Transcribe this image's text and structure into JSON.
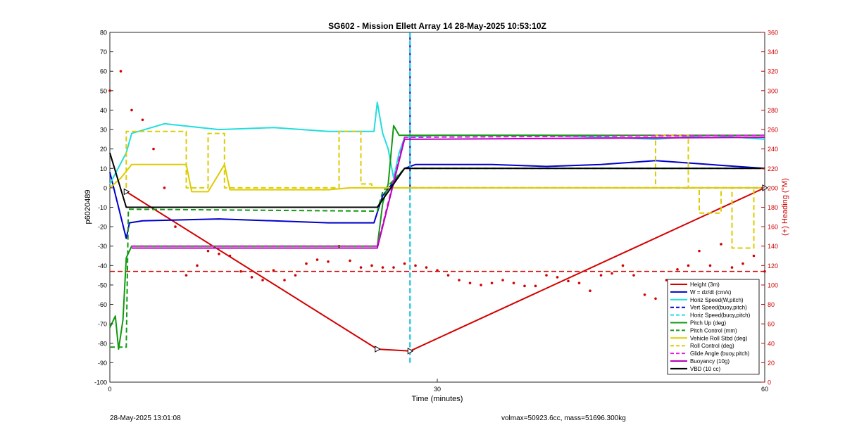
{
  "footer": {
    "timestamp": "28-May-2025 13:01:08",
    "mass_info": "volmax=50923.6cc, mass=51696.300kg"
  },
  "chart_data": {
    "type": "line",
    "title": "SG602 - Mission Ellett Array 14 28-May-2025 10:53:10Z",
    "xlabel": "Time (minutes)",
    "ylabel_left": "p6020489",
    "ylabel_right": "(+) Heading (°M)",
    "xlim": [
      0,
      60
    ],
    "ylim_left": [
      -100,
      80
    ],
    "ylim_right": [
      0,
      360
    ],
    "xticks": [
      0,
      30,
      60
    ],
    "yticks_left": [
      80,
      70,
      60,
      50,
      40,
      30,
      20,
      10,
      0,
      -10,
      -20,
      -30,
      -40,
      -50,
      -60,
      -70,
      -80,
      -90,
      -100
    ],
    "yticks_right": [
      360,
      340,
      320,
      300,
      280,
      260,
      240,
      220,
      200,
      180,
      160,
      140,
      120,
      100,
      80,
      60,
      40,
      20,
      0
    ],
    "grid": false,
    "legend_position": "bottom-right",
    "colors": {
      "left_axis": "#000000",
      "right_axis": "#cc0000"
    },
    "series": [
      {
        "name": "Height (3m)",
        "color": "#d40000",
        "style": "solid",
        "x": [
          1.5,
          24.5,
          27.5,
          60
        ],
        "y": [
          -2,
          -83,
          -84,
          0
        ]
      },
      {
        "name": "W = dz/dt (cm/s)",
        "color": "#0000cc",
        "style": "solid",
        "x": [
          0,
          1.5,
          1.8,
          3,
          10,
          15,
          20,
          24.2,
          25,
          26,
          27,
          28,
          35,
          40,
          45,
          50,
          55,
          60
        ],
        "y": [
          8,
          -26,
          -18,
          -17,
          -16,
          -17,
          -18,
          -18,
          -4,
          3,
          10,
          12,
          12,
          11,
          12,
          14,
          12,
          10
        ]
      },
      {
        "name": "Horiz Speed(W,pitch)",
        "color": "#22dddd",
        "style": "solid",
        "x": [
          0,
          1.5,
          2,
          5,
          10,
          15,
          20,
          24.2,
          24.5,
          25,
          25.5,
          26,
          26.5,
          27,
          30,
          40,
          50,
          55,
          60
        ],
        "y": [
          2,
          18,
          28,
          33,
          30,
          31,
          29,
          29,
          44,
          28,
          20,
          5,
          18,
          26,
          27,
          27,
          25,
          27,
          25
        ]
      },
      {
        "name": "Vert Speed(buoy,pitch)",
        "color": "#0000cc",
        "style": "dashed",
        "x": [
          27.5,
          27.5,
          27.5,
          60
        ],
        "y": [
          -90,
          80,
          0,
          0
        ]
      },
      {
        "name": "Horiz Speed(buoy,pitch)",
        "color": "#22dddd",
        "style": "dashed",
        "x": [
          27.5,
          27.5
        ],
        "y": [
          -90,
          80
        ]
      },
      {
        "name": "Pitch Up (deg)",
        "color": "#119911",
        "style": "solid",
        "x": [
          0,
          0.5,
          0.8,
          1.2,
          1.5,
          2,
          3,
          10,
          20,
          24.5,
          25,
          25.5,
          26,
          26.5,
          60
        ],
        "y": [
          -72,
          -66,
          -83,
          -68,
          -36,
          -30,
          -30,
          -30,
          -30,
          -30,
          -8,
          2,
          32,
          27,
          27
        ]
      },
      {
        "name": "Pitch Control (mm)",
        "color": "#119911",
        "style": "dashed",
        "x": [
          0,
          1.5,
          1.7,
          24.5,
          25,
          27,
          60
        ],
        "y": [
          -82,
          -82,
          -11,
          -12,
          -2,
          10,
          10
        ]
      },
      {
        "name": "Vehicle Roll Stbd (deg)",
        "color": "#ddcc00",
        "style": "solid",
        "x": [
          0,
          1,
          2,
          7,
          7.5,
          9,
          10.5,
          11,
          20,
          22,
          23,
          24,
          26,
          30,
          40,
          50,
          55,
          60
        ],
        "y": [
          0,
          5,
          12,
          12,
          -2,
          -2,
          12,
          -1,
          -1,
          0,
          0,
          0,
          0,
          0,
          0,
          0,
          0,
          0
        ]
      },
      {
        "name": "Roll Control (deg)",
        "color": "#ddcc00",
        "style": "dashed",
        "x": [
          1.5,
          1.5,
          7,
          7,
          9,
          9,
          10.5,
          10.5,
          21,
          21,
          23,
          23,
          24,
          24,
          50,
          50,
          53,
          53,
          54,
          54,
          56,
          56,
          57,
          57,
          59,
          59
        ],
        "y": [
          0,
          29,
          29,
          0,
          0,
          28,
          28,
          0,
          0,
          29,
          29,
          2,
          2,
          0,
          0,
          27,
          27,
          0,
          0,
          -13,
          -13,
          0,
          0,
          -31,
          -31,
          0
        ]
      },
      {
        "name": "Glide Angle (buoy,pitch)",
        "color": "#dd22dd",
        "style": "dashed",
        "x": [
          2,
          24.5,
          27,
          60
        ],
        "y": [
          -30,
          -30,
          26,
          27
        ]
      },
      {
        "name": "Buoyancy (10g)",
        "color": "#bb00bb",
        "style": "solid",
        "x": [
          2,
          24.5,
          27,
          60
        ],
        "y": [
          -31,
          -31,
          25,
          26
        ]
      },
      {
        "name": "VBD (10 cc)",
        "color": "#000000",
        "style": "solid",
        "x": [
          0,
          1.5,
          24.5,
          27,
          60
        ],
        "y": [
          18,
          -10,
          -10,
          10,
          10
        ]
      }
    ],
    "heading_series": {
      "color": "#d40000",
      "style": "dotted",
      "mean_heading": 114,
      "x": [
        0,
        1,
        2,
        3,
        4,
        5,
        6,
        7,
        8,
        9,
        10,
        11,
        12,
        13,
        14,
        15,
        16,
        17,
        18,
        19,
        20,
        21,
        22,
        23,
        24,
        25,
        26,
        27,
        28,
        29,
        30,
        31,
        32,
        33,
        34,
        35,
        36,
        37,
        38,
        39,
        40,
        41,
        42,
        43,
        44,
        45,
        46,
        47,
        48,
        49,
        50,
        51,
        52,
        53,
        54,
        55,
        56,
        57,
        58,
        59,
        60
      ],
      "y": [
        300,
        320,
        280,
        270,
        240,
        200,
        160,
        110,
        120,
        135,
        132,
        130,
        114,
        108,
        105,
        115,
        105,
        110,
        122,
        126,
        124,
        140,
        125,
        118,
        120,
        118,
        118,
        122,
        120,
        118,
        115,
        110,
        105,
        102,
        100,
        102,
        105,
        102,
        99,
        99,
        110,
        108,
        104,
        102,
        94,
        110,
        112,
        120,
        110,
        90,
        86,
        105,
        116,
        120,
        135,
        120,
        142,
        118,
        122,
        130,
        114
      ]
    }
  }
}
